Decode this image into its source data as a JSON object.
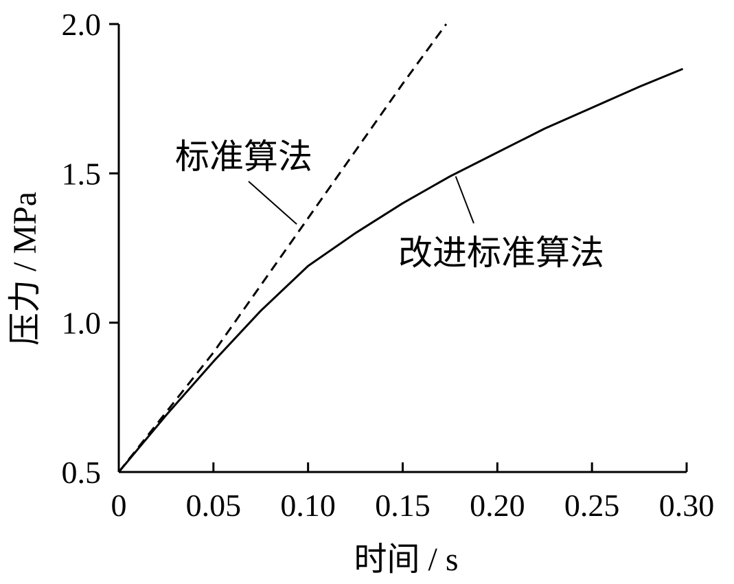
{
  "chart_data": {
    "type": "line",
    "xlabel": "时间 / s",
    "ylabel": "压力 / MPa",
    "xlim": [
      0,
      0.3
    ],
    "ylim": [
      0.5,
      2.0
    ],
    "x_ticks": [
      0,
      0.05,
      0.1,
      0.15,
      0.2,
      0.25,
      0.3
    ],
    "x_tick_labels": [
      "0",
      "0.05",
      "0.10",
      "0.15",
      "0.20",
      "0.25",
      "0.30"
    ],
    "y_ticks": [
      0.5,
      1.0,
      1.5,
      2.0
    ],
    "y_tick_labels": [
      "0.5",
      "1.0",
      "1.5",
      "2.0"
    ],
    "grid": false,
    "legend": "none",
    "series": [
      {
        "name": "标准算法",
        "style": "dashed",
        "color": "#000000",
        "x": [
          0,
          0.05,
          0.1,
          0.15,
          0.173
        ],
        "y": [
          0.5,
          0.9,
          1.35,
          1.8,
          2.0
        ]
      },
      {
        "name": "改进标准算法",
        "style": "solid",
        "color": "#000000",
        "x": [
          0,
          0.025,
          0.05,
          0.075,
          0.1,
          0.125,
          0.15,
          0.175,
          0.2,
          0.225,
          0.25,
          0.275,
          0.298
        ],
        "y": [
          0.5,
          0.69,
          0.87,
          1.04,
          1.19,
          1.3,
          1.4,
          1.49,
          1.57,
          1.65,
          1.72,
          1.79,
          1.85
        ]
      }
    ],
    "annotations": [
      {
        "text": "标准算法",
        "series": 0,
        "x": 0.094,
        "y": 1.33
      },
      {
        "text": "改进标准算法",
        "series": 1,
        "x": 0.178,
        "y": 1.49
      }
    ]
  }
}
